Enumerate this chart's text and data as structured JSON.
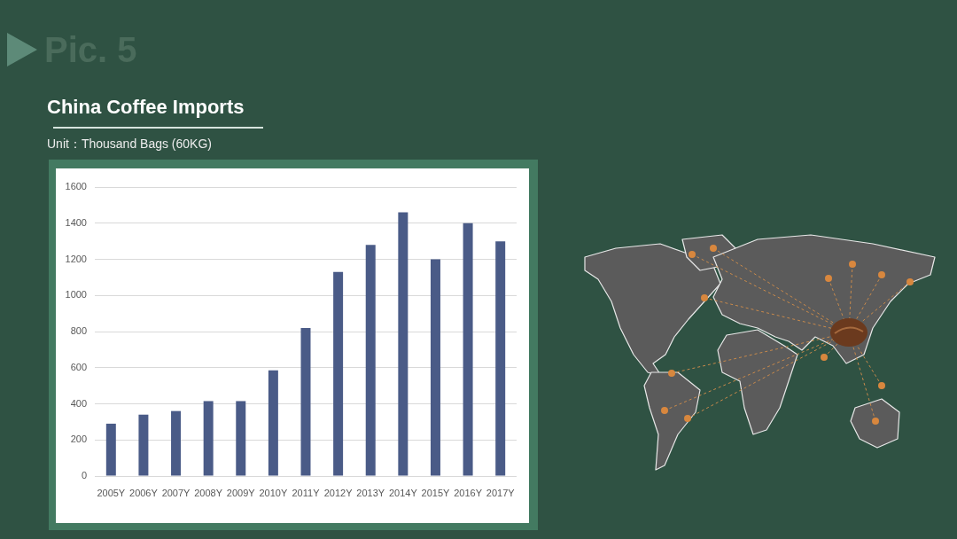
{
  "chart_data": {
    "type": "bar",
    "title": "China Coffee Imports",
    "subtitle": "Unit：Thousand Bags (60KG)",
    "annotations": [
      "Pic. 5"
    ],
    "categories": [
      "2005Y",
      "2006Y",
      "2007Y",
      "2008Y",
      "2009Y",
      "2010Y",
      "2011Y",
      "2012Y",
      "2013Y",
      "2014Y",
      "2015Y",
      "2016Y",
      "2017Y"
    ],
    "values": [
      290,
      340,
      360,
      415,
      415,
      585,
      820,
      1130,
      1280,
      1460,
      1200,
      1400,
      1300
    ],
    "color": "#4a5b87",
    "ylim": [
      0,
      1600
    ],
    "yticks": [
      0,
      200,
      400,
      600,
      800,
      1000,
      1200,
      1400,
      1600
    ],
    "grid": "y"
  }
}
